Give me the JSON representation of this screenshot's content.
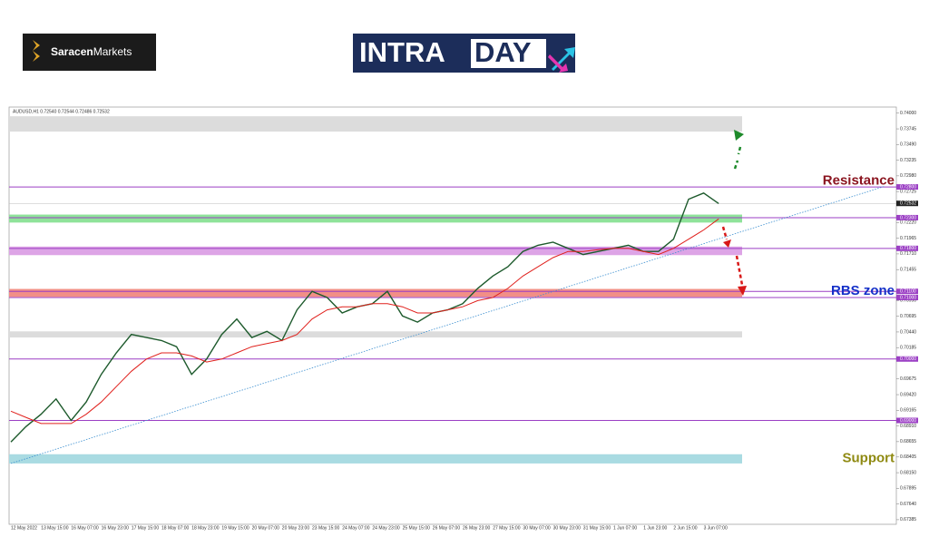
{
  "logo": {
    "brand_first": "Saracen",
    "brand_second": "Markets",
    "banner_first": "INTRA",
    "banner_second": "DAY"
  },
  "chart_data": {
    "type": "line",
    "info": "AUDUSD,H1  0.72540 0.72544 0.72486 0.72532",
    "current_price": {
      "value": 0.72532,
      "label": "0.72532"
    },
    "categories": [
      "12 May 2022",
      null,
      "13 May 15:00",
      null,
      "16 May 07:00",
      null,
      "16 May 23:00",
      null,
      "17 May 15:00",
      null,
      "18 May 07:00",
      null,
      "18 May 23:00",
      null,
      "19 May 15:00",
      null,
      "20 May 07:00",
      null,
      "20 May 23:00",
      null,
      "23 May 15:00",
      null,
      "24 May 07:00",
      null,
      "24 May 23:00",
      null,
      "25 May 15:00",
      null,
      "26 May 07:00",
      null,
      "26 May 23:00",
      null,
      "27 May 15:00",
      null,
      "30 May 07:00",
      null,
      "30 May 23:00",
      null,
      "31 May 15:00",
      null,
      "1 Jun 07:00",
      null,
      "1 Jun 23:00",
      null,
      "2 Jun 15:00",
      null,
      "3 Jun 07:00",
      null
    ],
    "series": [
      {
        "name": "AUDUSD",
        "color": "#1d5a2c",
        "values": [
          0.6865,
          0.689,
          0.691,
          0.6935,
          0.69,
          0.693,
          0.6975,
          0.701,
          0.704,
          0.7035,
          0.703,
          0.702,
          0.6975,
          0.7,
          0.704,
          0.7065,
          0.7035,
          0.7045,
          0.703,
          0.708,
          0.711,
          0.71,
          0.7075,
          0.7085,
          0.709,
          0.711,
          0.707,
          0.706,
          0.7075,
          0.708,
          0.709,
          0.7115,
          0.7135,
          0.715,
          0.7175,
          0.7185,
          0.719,
          0.718,
          0.717,
          0.7175,
          0.718,
          0.7185,
          0.7175,
          0.7175,
          0.7195,
          0.726,
          0.727,
          0.7253
        ]
      },
      {
        "name": "MA",
        "color": "#e0201c",
        "values": [
          0.6915,
          0.6905,
          0.6895,
          0.6895,
          0.6895,
          0.691,
          0.693,
          0.6955,
          0.698,
          0.7,
          0.701,
          0.701,
          0.7005,
          0.6995,
          0.7,
          0.701,
          0.702,
          0.7025,
          0.703,
          0.704,
          0.7065,
          0.708,
          0.7085,
          0.7085,
          0.709,
          0.709,
          0.7085,
          0.7075,
          0.7075,
          0.708,
          0.7085,
          0.7095,
          0.71,
          0.7115,
          0.7135,
          0.715,
          0.7165,
          0.7175,
          0.7175,
          0.7178,
          0.718,
          0.718,
          0.7175,
          0.717,
          0.718,
          0.7195,
          0.721,
          0.7228
        ]
      }
    ],
    "trendline": [
      0.683,
      0.7281
    ],
    "ylim": [
      0.6731,
      0.741
    ],
    "yticks": [
      {
        "value": 0.74,
        "label": "0.74000"
      },
      {
        "value": 0.73745,
        "label": "0.73745"
      },
      {
        "value": 0.7349,
        "label": "0.73490"
      },
      {
        "value": 0.73235,
        "label": "0.73235"
      },
      {
        "value": 0.7298,
        "label": "0.72980"
      },
      {
        "value": 0.72725,
        "label": "0.72725"
      },
      {
        "value": 0.7222,
        "label": "0.72220"
      },
      {
        "value": 0.71965,
        "label": "0.71965"
      },
      {
        "value": 0.7171,
        "label": "0.71710"
      },
      {
        "value": 0.71455,
        "label": "0.71455"
      },
      {
        "value": 0.7095,
        "label": "0.70950"
      },
      {
        "value": 0.70695,
        "label": "0.70695"
      },
      {
        "value": 0.7044,
        "label": "0.70440"
      },
      {
        "value": 0.70185,
        "label": "0.70185"
      },
      {
        "value": 0.69675,
        "label": "0.69675"
      },
      {
        "value": 0.6942,
        "label": "0.69420"
      },
      {
        "value": 0.69165,
        "label": "0.69165"
      },
      {
        "value": 0.6891,
        "label": "0.68910"
      },
      {
        "value": 0.68655,
        "label": "0.68655"
      },
      {
        "value": 0.68405,
        "label": "0.68405"
      },
      {
        "value": 0.6815,
        "label": "0.68150"
      },
      {
        "value": 0.67895,
        "label": "0.67895"
      },
      {
        "value": 0.6764,
        "label": "0.67640"
      },
      {
        "value": 0.67385,
        "label": "0.67385"
      }
    ],
    "levels": [
      {
        "value": 0.728,
        "label": "0.72800"
      },
      {
        "value": 0.723,
        "label": "0.72300"
      },
      {
        "value": 0.718,
        "label": "0.71800"
      },
      {
        "value": 0.711,
        "label": "0.71100"
      },
      {
        "value": 0.71,
        "label": "0.71000"
      },
      {
        "value": 0.7,
        "label": "0.70000"
      },
      {
        "value": 0.69,
        "label": "0.69000"
      }
    ],
    "level_color": "#9b3fc4",
    "zones": [
      {
        "range": [
          0.737,
          0.7395
        ],
        "color": "#dcdcdc"
      },
      {
        "range": [
          0.7222,
          0.7235
        ],
        "color": "#8fe39a"
      },
      {
        "range": [
          0.7169,
          0.7183
        ],
        "color": "#dda4e6"
      },
      {
        "range": [
          0.7101,
          0.7114
        ],
        "color": "#f28f86"
      },
      {
        "range": [
          0.7035,
          0.7045
        ],
        "color": "#dcdcdc"
      },
      {
        "range": [
          0.683,
          0.6845
        ],
        "color": "#a9dbe2"
      }
    ],
    "annotations": [
      {
        "text": "Resistance",
        "value": 0.729,
        "color": "#8b1520"
      },
      {
        "text": "RBS zone",
        "value": 0.711,
        "color": "#1530c8"
      },
      {
        "text": "Support",
        "value": 0.6838,
        "color": "#8f8a12"
      }
    ]
  }
}
